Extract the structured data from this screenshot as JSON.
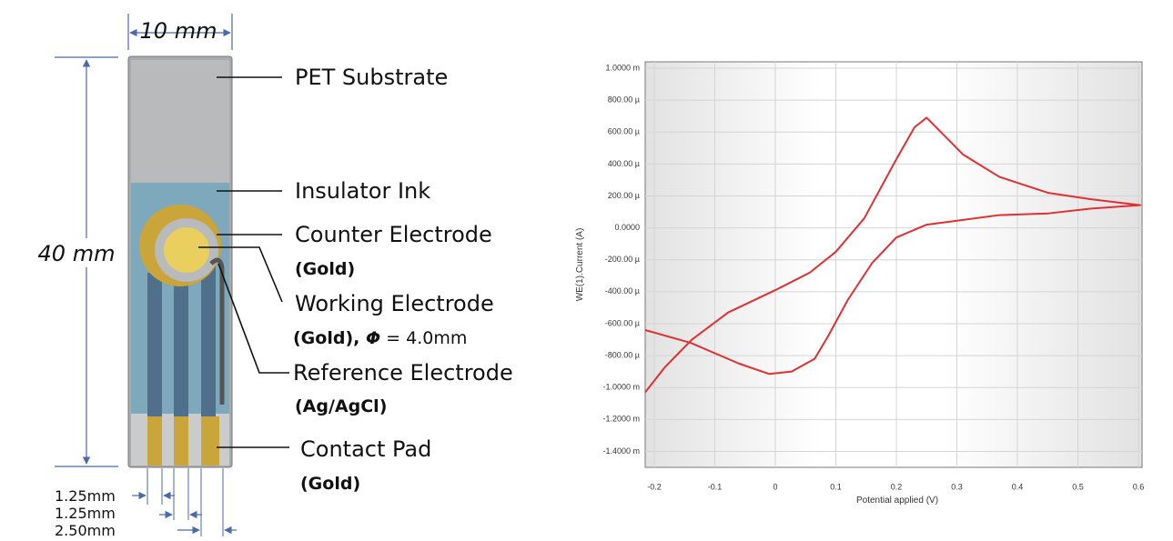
{
  "diagram": {
    "width_label": "10 mm",
    "height_label": "40 mm",
    "labels": [
      "PET Substrate",
      "Insulator Ink",
      "Counter Electrode",
      "(Gold)",
      "Working Electrode",
      "(Gold), ",
      "Φ",
      " = 4.0mm",
      "Reference Electrode",
      "(Ag/AgCl)",
      "Contact Pad",
      "(Gold)"
    ],
    "dimensions": [
      "1.25mm",
      "1.25mm",
      "2.50mm"
    ]
  },
  "chart_data": {
    "type": "line",
    "x_label": "Potential applied (V)",
    "y_label": "WE(1).Current (A)",
    "xlim": [
      -0.215,
      0.606
    ],
    "ylim": [
      -0.0015,
      0.00104
    ],
    "xticks": [
      -0.2,
      -0.1,
      0,
      0.1,
      0.2,
      0.3,
      0.4,
      0.5,
      0.6
    ],
    "yticks": [
      {
        "value": 0.001,
        "label": "1.0000 m"
      },
      {
        "value": 0.0008,
        "label": "800.00 µ"
      },
      {
        "value": 0.0006,
        "label": "600.00 µ"
      },
      {
        "value": 0.0004,
        "label": "400.00 µ"
      },
      {
        "value": 0.0002,
        "label": "200.00 µ"
      },
      {
        "value": 0,
        "label": "0.0000"
      },
      {
        "value": -0.0002,
        "label": "-200.00 µ"
      },
      {
        "value": -0.0004,
        "label": "-400.00 µ"
      },
      {
        "value": -0.0006,
        "label": "-600.00 µ"
      },
      {
        "value": -0.0008,
        "label": "-800.00 µ"
      },
      {
        "value": -0.001,
        "label": "-1.0000 m"
      },
      {
        "value": -0.0012,
        "label": "-1.2000 m"
      },
      {
        "value": -0.0014,
        "label": "-1.4000 m"
      }
    ],
    "grid": true,
    "series": [
      {
        "color": "#e03030",
        "x": [
          -0.215,
          -0.183,
          -0.138,
          -0.078,
          0,
          0.057,
          0.1,
          0.147,
          0.2,
          0.23,
          0.25,
          0.31,
          0.37,
          0.45,
          0.52,
          0.603,
          0.52,
          0.45,
          0.37,
          0.3,
          0.25,
          0.2,
          0.16,
          0.12,
          0.087,
          0.065,
          0.027,
          -0.01,
          -0.06,
          -0.14,
          -0.215
        ],
        "values": [
          -0.00103,
          -0.000875,
          -0.0007,
          -0.00053,
          -0.00039,
          -0.00028,
          -0.00015,
          6e-05,
          0.00043,
          0.00063,
          0.00069,
          0.00046,
          0.00032,
          0.00022,
          0.00018,
          0.000142,
          0.00012,
          9e-05,
          8e-05,
          4.5e-05,
          2e-05,
          -6e-05,
          -0.00022,
          -0.00045,
          -0.00068,
          -0.00082,
          -0.0009,
          -0.000915,
          -0.00085,
          -0.00072,
          -0.00064
        ]
      }
    ]
  }
}
